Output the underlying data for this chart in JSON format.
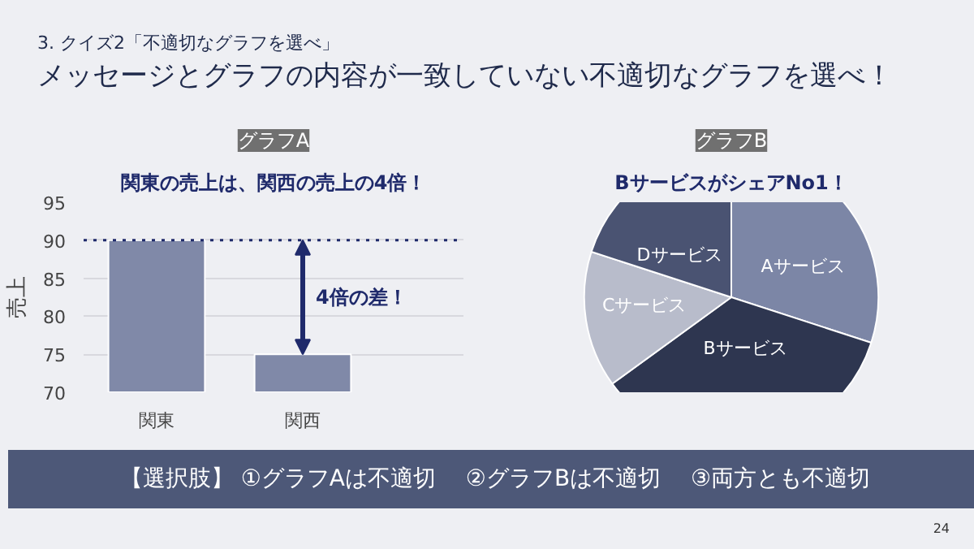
{
  "chart_data": [
    {
      "type": "bar",
      "title": "グラフA",
      "subtitle": "関東の売上は、関西の売上の4倍！",
      "ylabel": "売上",
      "categories": [
        "関東",
        "関西"
      ],
      "values": [
        90,
        75
      ],
      "color": "#8089a8",
      "ylim": [
        70,
        95
      ],
      "yticks": [
        70,
        75,
        80,
        85,
        90,
        95
      ],
      "grid": "y",
      "ref_lines": [
        {
          "axis": "y",
          "value": 90,
          "line_style": "dotted",
          "color": "#1f2a6b"
        }
      ],
      "annotations": [
        "4倍の差！",
        "3. クイズ2「不適切なグラフを選べ」",
        "メッセージとグラフの内容が一致していない不適切なグラフを選べ！"
      ]
    },
    {
      "type": "pie",
      "title": "グラフB",
      "subtitle": "BサービスがシェアNo1！",
      "categories": [
        "Aサービス",
        "Bサービス",
        "Cサービス",
        "Dサービス"
      ],
      "values": [
        30,
        35,
        15,
        20
      ],
      "colors": [
        "#7c86a6",
        "#2e3650",
        "#b8bccb",
        "#4a5372"
      ],
      "annotations": [
        "【選択肢】 ①グラフAは不適切　 ②グラフBは不適切　 ③両方とも不適切",
        "24"
      ]
    }
  ]
}
